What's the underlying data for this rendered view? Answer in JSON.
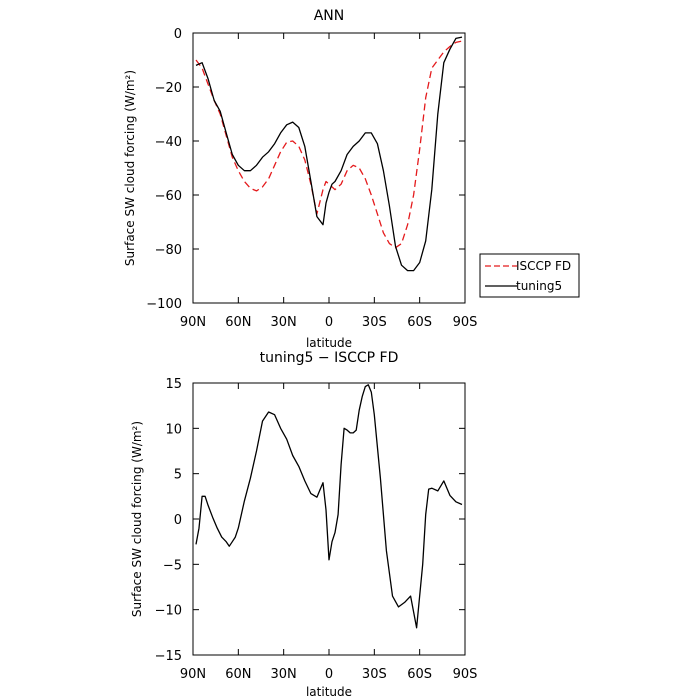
{
  "chart_data": [
    {
      "type": "line",
      "title": "ANN",
      "xlabel": "latitude",
      "ylabel": "Surface SW cloud forcing (W/m²)",
      "xlim": [
        90,
        -90
      ],
      "ylim": [
        -100,
        0
      ],
      "xticks": [
        90,
        60,
        30,
        0,
        -30,
        -60,
        -90
      ],
      "xtick_labels": [
        "90N",
        "60N",
        "30N",
        "0",
        "30S",
        "60S",
        "90S"
      ],
      "yticks": [
        0,
        -20,
        -40,
        -60,
        -80,
        -100
      ],
      "ytick_labels": [
        "0",
        "−20",
        "−40",
        "−60",
        "−80",
        "−100"
      ],
      "grid": false,
      "legend_position": "right-bottom (outside)",
      "series": [
        {
          "name": "ISCCP FD",
          "color": "#e41a1c",
          "style": "dashed",
          "x": [
            88,
            84,
            80,
            76,
            72,
            68,
            64,
            60,
            56,
            52,
            48,
            44,
            40,
            36,
            32,
            28,
            24,
            20,
            16,
            12,
            8,
            4,
            2,
            0,
            -2,
            -4,
            -8,
            -12,
            -16,
            -20,
            -24,
            -28,
            -32,
            -36,
            -40,
            -44,
            -48,
            -52,
            -56,
            -60,
            -64,
            -68,
            -72,
            -76,
            -80,
            -84,
            -88
          ],
          "y": [
            -10,
            -13,
            -19,
            -25,
            -30,
            -38,
            -46,
            -51,
            -55,
            -57.5,
            -58.5,
            -57,
            -54,
            -49,
            -44,
            -40.5,
            -40,
            -42,
            -47,
            -56,
            -67,
            -58,
            -55,
            -56,
            -57,
            -58,
            -56,
            -51,
            -49,
            -50,
            -54,
            -60,
            -67,
            -74,
            -78,
            -79.5,
            -78,
            -71,
            -60,
            -43,
            -24,
            -13,
            -10,
            -7,
            -5,
            -3.5,
            -3
          ]
        },
        {
          "name": "tuning5",
          "color": "#000000",
          "style": "solid",
          "x": [
            88,
            84,
            80,
            76,
            72,
            68,
            64,
            60,
            56,
            52,
            48,
            44,
            40,
            36,
            32,
            28,
            24,
            20,
            16,
            12,
            8,
            4,
            2,
            0,
            -2,
            -4,
            -8,
            -12,
            -16,
            -20,
            -24,
            -28,
            -32,
            -36,
            -40,
            -44,
            -48,
            -52,
            -56,
            -60,
            -64,
            -68,
            -72,
            -76,
            -80,
            -84,
            -88
          ],
          "y": [
            -12,
            -11,
            -17,
            -25,
            -29,
            -37,
            -45,
            -49,
            -51,
            -51,
            -49,
            -46,
            -44,
            -41,
            -37,
            -34,
            -33,
            -35,
            -42,
            -55,
            -68,
            -71,
            -63,
            -59,
            -56,
            -55,
            -51,
            -45,
            -42,
            -40,
            -37,
            -37,
            -41,
            -51,
            -64,
            -79,
            -86,
            -88,
            -88,
            -85,
            -77,
            -58,
            -30,
            -11,
            -6,
            -2,
            -1.5
          ]
        }
      ]
    },
    {
      "type": "line",
      "title": "tuning5 − ISCCP FD",
      "xlabel": "latitude",
      "ylabel": "Surface SW cloud forcing (W/m²)",
      "xlim": [
        90,
        -90
      ],
      "ylim": [
        -15,
        15
      ],
      "xticks": [
        90,
        60,
        30,
        0,
        -30,
        -60,
        -90
      ],
      "xtick_labels": [
        "90N",
        "60N",
        "30N",
        "0",
        "30S",
        "60S",
        "90S"
      ],
      "yticks": [
        15,
        10,
        5,
        0,
        -5,
        -10,
        -15
      ],
      "ytick_labels": [
        "15",
        "10",
        "5",
        "0",
        "−5",
        "−10",
        "−15"
      ],
      "grid": false,
      "series": [
        {
          "color": "#000000",
          "style": "solid",
          "x": [
            88,
            86,
            84,
            82,
            80,
            77,
            74,
            71,
            68,
            66,
            64,
            62,
            60,
            56,
            52,
            48,
            44,
            40,
            36,
            32,
            28,
            24,
            20,
            16,
            12,
            8,
            6,
            4,
            2,
            0,
            -2,
            -4,
            -6,
            -8,
            -10,
            -12,
            -14,
            -16,
            -18,
            -20,
            -22,
            -24,
            -26,
            -28,
            -30,
            -34,
            -38,
            -42,
            -46,
            -50,
            -54,
            -58,
            -62,
            -64,
            -66,
            -68,
            -72,
            -76,
            -80,
            -84,
            -88
          ],
          "y": [
            -2.8,
            -1,
            2.5,
            2.5,
            1.5,
            0.2,
            -1,
            -2,
            -2.5,
            -3,
            -2.5,
            -2,
            -1,
            2,
            4.5,
            7.5,
            10.8,
            11.8,
            11.5,
            10,
            8.8,
            7,
            5.8,
            4.2,
            2.8,
            2.4,
            3.2,
            4,
            1,
            -4.5,
            -2.5,
            -1.5,
            0.5,
            6,
            10,
            9.8,
            9.5,
            9.5,
            9.8,
            12,
            13.5,
            14.6,
            14.8,
            14,
            11.5,
            4.5,
            -3.5,
            -8.5,
            -9.7,
            -9.2,
            -8.5,
            -12,
            -5,
            0.5,
            3.3,
            3.4,
            3.1,
            4.2,
            2.6,
            1.9,
            1.6
          ]
        }
      ]
    }
  ]
}
